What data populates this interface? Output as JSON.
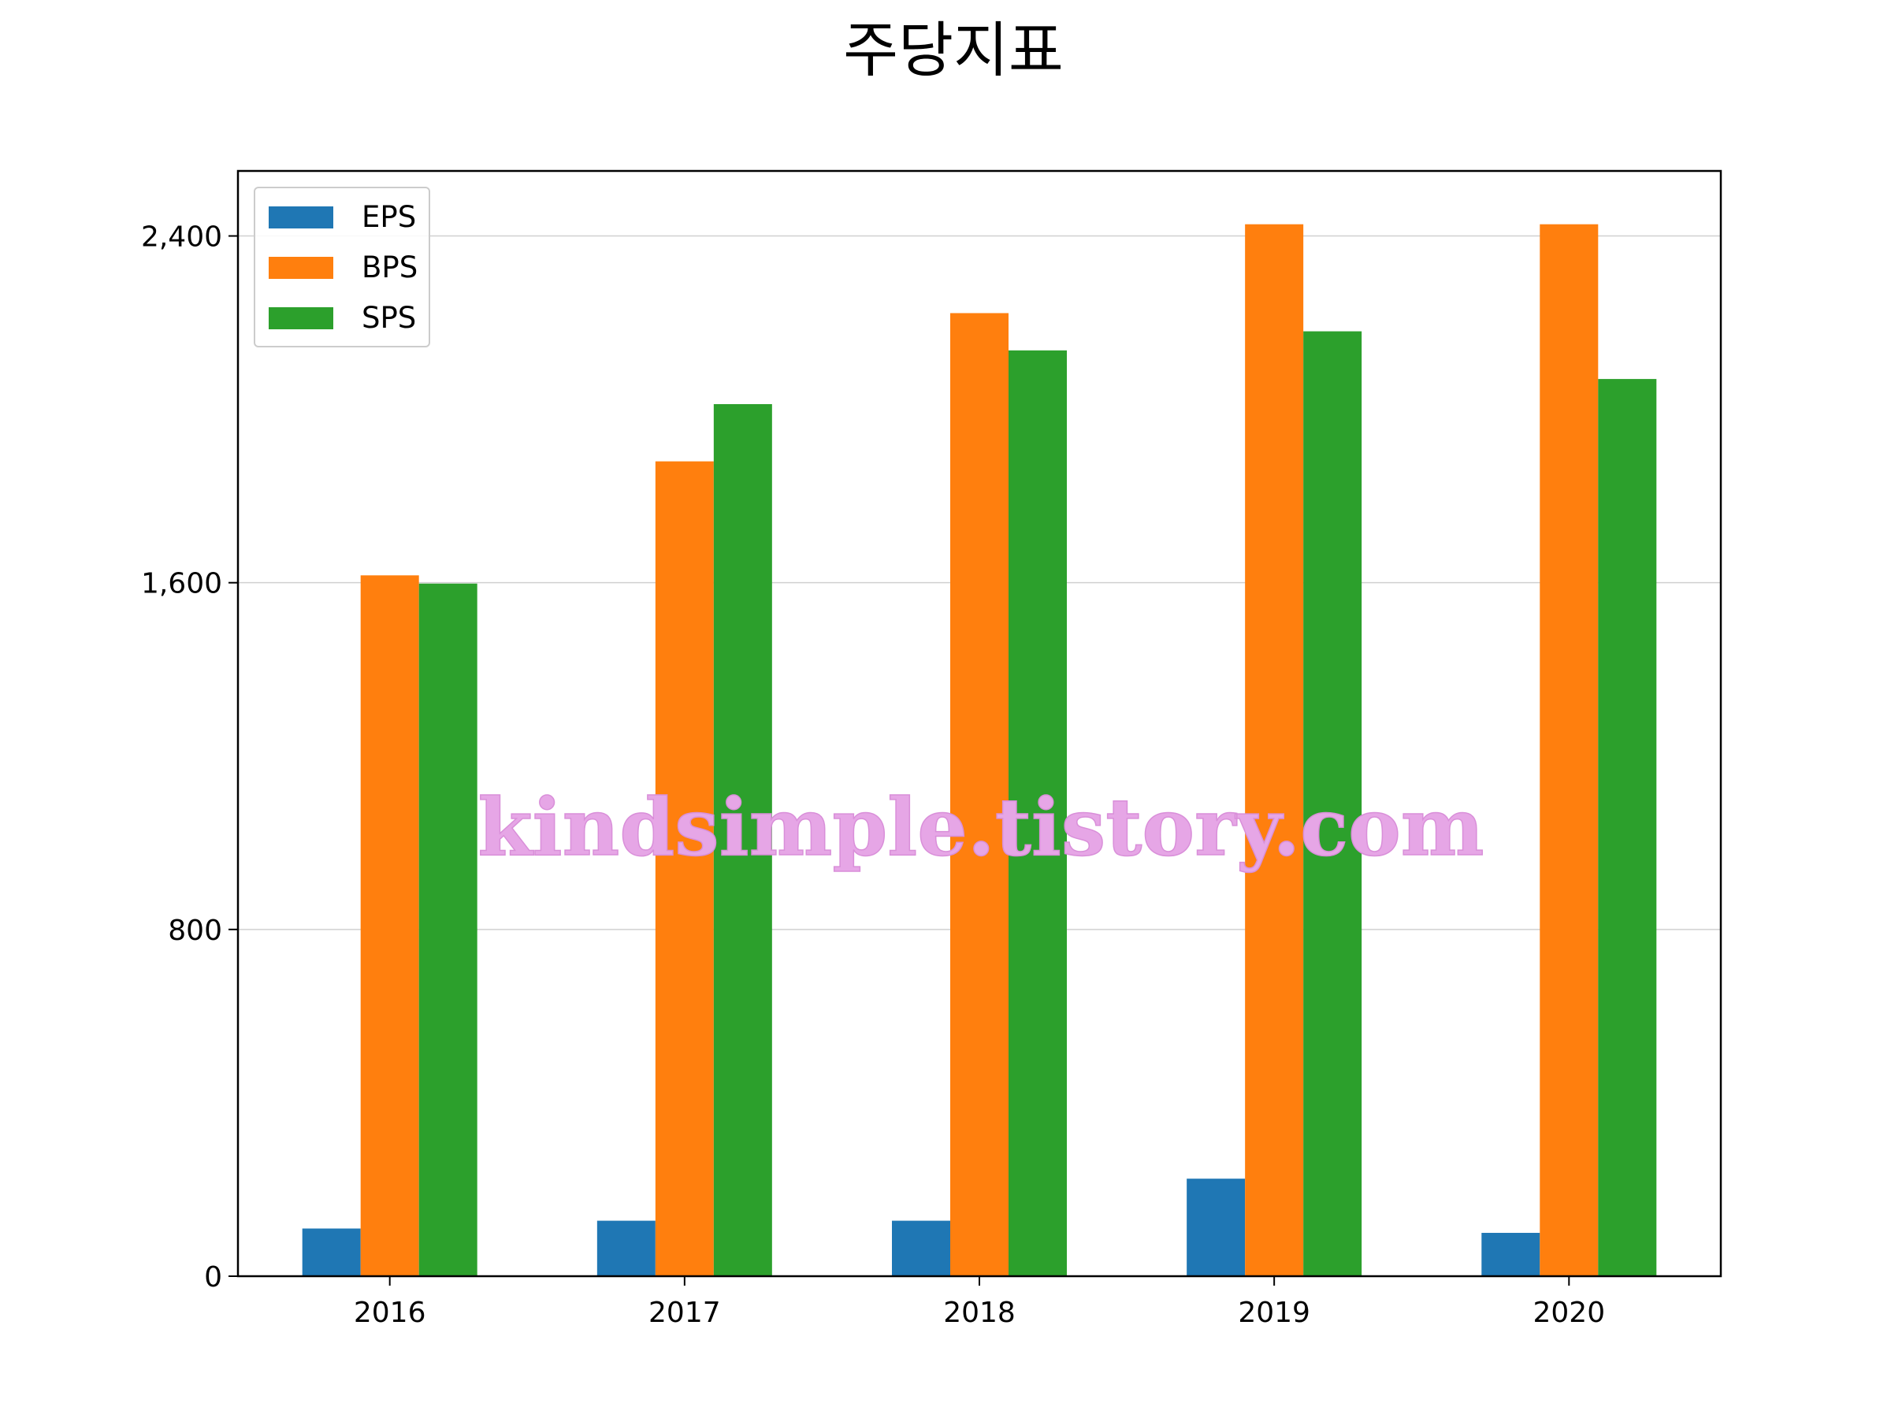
{
  "chart_data": {
    "type": "bar",
    "title": "주당지표",
    "xlabel": "",
    "ylabel": "",
    "categories": [
      "2016",
      "2017",
      "2018",
      "2019",
      "2020"
    ],
    "series": [
      {
        "name": "EPS",
        "color": "#1f77b4",
        "values": [
          110,
          128,
          128,
          225,
          100
        ]
      },
      {
        "name": "BPS",
        "color": "#ff7f0e",
        "values": [
          1617,
          1880,
          2222,
          2427,
          2427
        ]
      },
      {
        "name": "SPS",
        "color": "#2ca02c",
        "values": [
          1598,
          2012,
          2136,
          2180,
          2070
        ]
      }
    ],
    "ylim": [
      0,
      2550
    ],
    "yticks": [
      0,
      800,
      1600,
      2400
    ],
    "ytick_labels": [
      "0",
      "800",
      "1,600",
      "2,400"
    ],
    "grid": "horizontal",
    "legend_position": "top-left",
    "watermark": "kindsimple.tistory.com"
  }
}
